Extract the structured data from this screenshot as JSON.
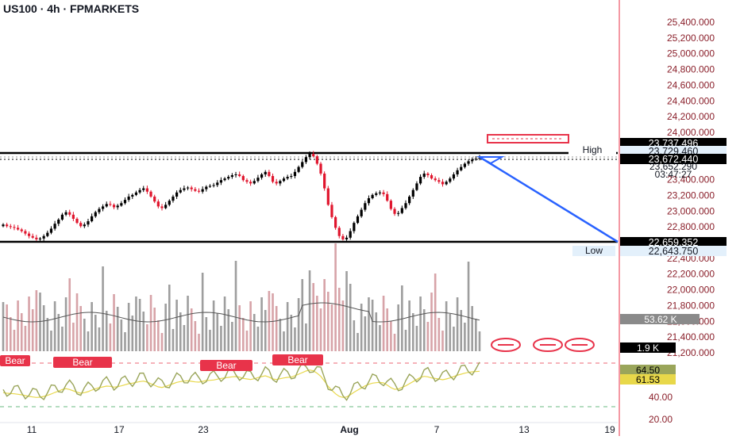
{
  "header": {
    "title": "US100 · 4h · FPMARKETS"
  },
  "price_axis": {
    "ticks": [
      "25,400.000",
      "25,200.000",
      "25,000.000",
      "24,800.000",
      "24,600.000",
      "24,400.000",
      "24,200.000",
      "24,000.000",
      "23,400.000",
      "23,200.000",
      "23,000.000",
      "22,800.000",
      "22,400.000",
      "22,200.000",
      "22,000.000",
      "21,800.000",
      "21,600.000",
      "21,400.000",
      "21,200.000",
      "20.00",
      "40.00"
    ],
    "tick_values": [
      25400,
      25200,
      25000,
      24800,
      24600,
      24400,
      24200,
      24000,
      23400,
      23200,
      23000,
      22800,
      22400,
      22200,
      22000,
      21800,
      21600,
      21400,
      21200
    ],
    "tag_high_label": "23,737.496",
    "tag_high_line": "23,729.460",
    "tag_last": "23,672.440",
    "tag_mid": "23,652.290",
    "tag_countdown": "03:47:27",
    "tag_low_line": "22,659.352",
    "tag_low_label": "22,643.750",
    "tag_volume_ma": "53.62 K",
    "tag_volume": "1.9 K",
    "tag_rsi": "64.50",
    "tag_rsi_ma": "61.53"
  },
  "labels": {
    "high": "High",
    "low": "Low",
    "bear": "Bear"
  },
  "time_axis": {
    "labels": [
      "11",
      "17",
      "23",
      "Aug",
      "7",
      "13",
      "19"
    ]
  },
  "colors": {
    "up": "#000000",
    "down": "#e0152d",
    "trend": "#2962ff",
    "accent_red": "#e8334a",
    "rsi": "#9aa55a",
    "rsi_ma": "#e8d84a",
    "vol_up": "#9e9e9e",
    "vol_down": "#d7a3a8"
  },
  "chart_data": {
    "type": "candlestick",
    "symbol": "US100",
    "timeframe": "4h",
    "price_ylim": [
      21200,
      25500
    ],
    "high_level": 23729.46,
    "low_level": 22659.352,
    "last_price": 23672.44,
    "closes": [
      22860,
      22840,
      22830,
      22820,
      22800,
      22780,
      22750,
      22720,
      22700,
      22680,
      22690,
      22720,
      22760,
      22810,
      22870,
      22920,
      22980,
      23010,
      22980,
      22930,
      22880,
      22840,
      22860,
      22900,
      22960,
      23010,
      23050,
      23080,
      23110,
      23100,
      23070,
      23090,
      23120,
      23160,
      23200,
      23220,
      23250,
      23280,
      23300,
      23260,
      23200,
      23140,
      23080,
      23060,
      23100,
      23150,
      23200,
      23250,
      23280,
      23300,
      23310,
      23290,
      23270,
      23260,
      23290,
      23320,
      23330,
      23340,
      23370,
      23400,
      23420,
      23440,
      23460,
      23470,
      23450,
      23400,
      23380,
      23360,
      23390,
      23430,
      23470,
      23500,
      23450,
      23380,
      23360,
      23390,
      23420,
      23440,
      23450,
      23500,
      23560,
      23620,
      23680,
      23720,
      23690,
      23600,
      23480,
      23300,
      23100,
      22950,
      22820,
      22720,
      22680,
      22700,
      22780,
      22880,
      22960,
      23040,
      23120,
      23180,
      23220,
      23240,
      23250,
      23230,
      23150,
      23050,
      22990,
      23000,
      23060,
      23120,
      23200,
      23280,
      23360,
      23440,
      23480,
      23460,
      23420,
      23400,
      23380,
      23350,
      23380,
      23420,
      23470,
      23520,
      23560,
      23600,
      23630,
      23650,
      23660,
      23672.44
    ],
    "volume_last": "1.9 K",
    "volume_ma_last": "53.62 K",
    "rsi_levels": [
      70,
      30
    ],
    "rsi_last": 64.5,
    "rsi_ma_last": 61.53
  }
}
